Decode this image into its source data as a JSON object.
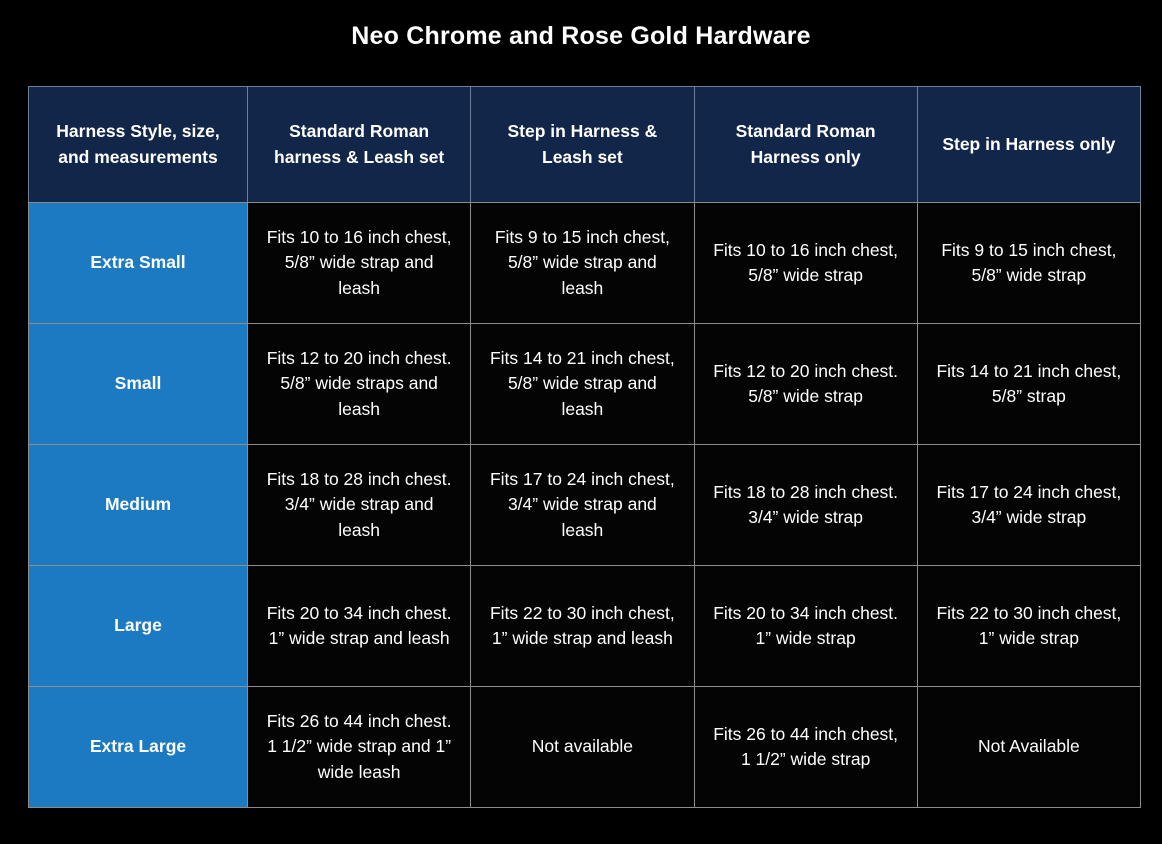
{
  "title": "Neo Chrome and Rose Gold Hardware",
  "colors": {
    "background": "#000000",
    "header_bg": "#12264a",
    "size_col_bg": "#1b7ac1",
    "cell_bg": "#040404",
    "grid_border": "#8c8c8c",
    "text": "#ffffff"
  },
  "chart_data": {
    "type": "table",
    "title": "Neo Chrome and Rose Gold Hardware",
    "columns": [
      "Harness Style, size, and measurements",
      "Standard Roman harness & Leash set",
      "Step in Harness & Leash set",
      "Standard Roman Harness only",
      "Step in Harness only"
    ],
    "rows": [
      [
        "Extra Small",
        "Fits 10 to 16 inch chest, 5/8” wide strap and leash",
        "Fits 9 to 15 inch chest, 5/8” wide strap and leash",
        "Fits 10 to 16 inch chest, 5/8” wide strap",
        "Fits 9 to 15 inch chest, 5/8” wide strap"
      ],
      [
        "Small",
        "Fits 12 to 20 inch chest. 5/8” wide straps and leash",
        "Fits 14 to 21 inch chest, 5/8” wide strap and leash",
        "Fits 12 to 20 inch chest. 5/8” wide strap",
        "Fits 14 to 21 inch chest, 5/8” strap"
      ],
      [
        "Medium",
        "Fits 18 to 28 inch chest. 3/4” wide strap and leash",
        "Fits 17 to 24 inch chest, 3/4” wide strap and leash",
        "Fits 18 to 28 inch chest. 3/4” wide strap",
        "Fits 17 to 24 inch chest, 3/4” wide strap"
      ],
      [
        "Large",
        "Fits 20 to 34 inch chest. 1” wide strap and leash",
        "Fits 22 to 30 inch chest, 1” wide strap and leash",
        "Fits 20 to 34 inch chest. 1” wide strap",
        "Fits 22 to 30 inch chest, 1” wide strap"
      ],
      [
        "Extra Large",
        "Fits 26 to 44 inch chest. 1 1/2” wide strap and 1” wide leash",
        "Not available",
        "Fits 26 to 44 inch chest, 1 1/2” wide strap",
        "Not Available"
      ]
    ]
  }
}
